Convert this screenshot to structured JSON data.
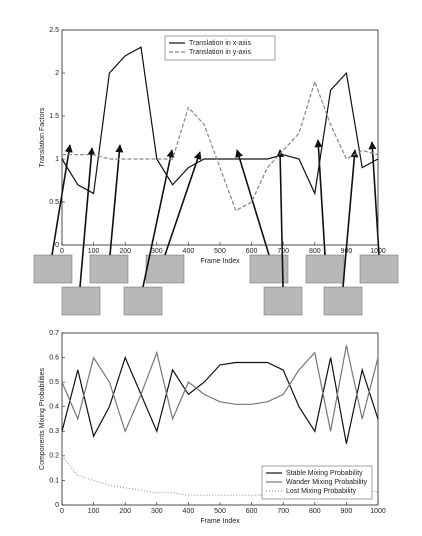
{
  "chart_data": [
    {
      "type": "line",
      "xlabel": "Frame Index",
      "ylabel": "Translation Factors",
      "x": [
        0,
        50,
        100,
        150,
        200,
        250,
        300,
        350,
        400,
        450,
        500,
        550,
        600,
        650,
        700,
        750,
        800,
        850,
        900,
        950,
        1000
      ],
      "xlim": [
        0,
        1000
      ],
      "xticks": [
        0,
        100,
        200,
        300,
        400,
        500,
        600,
        700,
        800,
        900,
        1000
      ],
      "ylim": [
        0,
        2.5
      ],
      "yticks": [
        0,
        0.5,
        1,
        1.5,
        2,
        2.5
      ],
      "legend": "upper center",
      "series": [
        {
          "name": "Translation in x-axis",
          "color": "#111111",
          "linestyle": "solid",
          "values": [
            1,
            0.7,
            0.6,
            2.0,
            2.2,
            2.3,
            1,
            0.7,
            0.9,
            1.0,
            1.0,
            1.0,
            1.0,
            1.0,
            1.05,
            1.0,
            0.6,
            1.8,
            2.0,
            0.9,
            1.0
          ]
        },
        {
          "name": "Translation in y-axis",
          "color": "#888888",
          "linestyle": "dashed",
          "values": [
            1.05,
            1.05,
            1.05,
            1.0,
            1.0,
            1.0,
            1.0,
            1.0,
            1.6,
            1.4,
            0.9,
            0.4,
            0.5,
            0.9,
            1.1,
            1.3,
            1.9,
            1.4,
            1.0,
            1.1,
            1.05
          ]
        }
      ]
    },
    {
      "type": "line",
      "xlabel": "Frame Index",
      "ylabel": "Components Mixing Probabilities",
      "x": [
        0,
        50,
        100,
        150,
        200,
        250,
        300,
        350,
        400,
        450,
        500,
        550,
        600,
        650,
        700,
        750,
        800,
        850,
        900,
        950,
        1000
      ],
      "xlim": [
        0,
        1000
      ],
      "xticks": [
        0,
        100,
        200,
        300,
        400,
        500,
        600,
        700,
        800,
        900,
        1000
      ],
      "ylim": [
        0,
        0.7
      ],
      "yticks": [
        0,
        0.1,
        0.2,
        0.3,
        0.4,
        0.5,
        0.6,
        0.7
      ],
      "legend": "lower right",
      "series": [
        {
          "name": "Stable Mixing Probability",
          "color": "#111111",
          "linestyle": "solid",
          "values": [
            0.3,
            0.55,
            0.28,
            0.4,
            0.6,
            0.45,
            0.3,
            0.55,
            0.45,
            0.5,
            0.57,
            0.58,
            0.58,
            0.58,
            0.55,
            0.4,
            0.3,
            0.6,
            0.25,
            0.55,
            0.35
          ]
        },
        {
          "name": "Wander Mixing Probability",
          "color": "#777777",
          "linestyle": "solid",
          "values": [
            0.5,
            0.35,
            0.6,
            0.5,
            0.3,
            0.45,
            0.62,
            0.35,
            0.5,
            0.45,
            0.42,
            0.41,
            0.41,
            0.42,
            0.45,
            0.55,
            0.62,
            0.3,
            0.65,
            0.35,
            0.6
          ]
        },
        {
          "name": "Lost Mixing Probability",
          "color": "#999999",
          "linestyle": "dotted",
          "values": [
            0.2,
            0.12,
            0.1,
            0.08,
            0.07,
            0.06,
            0.05,
            0.05,
            0.04,
            0.04,
            0.04,
            0.04,
            0.04,
            0.04,
            0.03,
            0.06,
            0.12,
            0.1,
            0.08,
            0.07,
            0.05
          ]
        }
      ]
    }
  ]
}
